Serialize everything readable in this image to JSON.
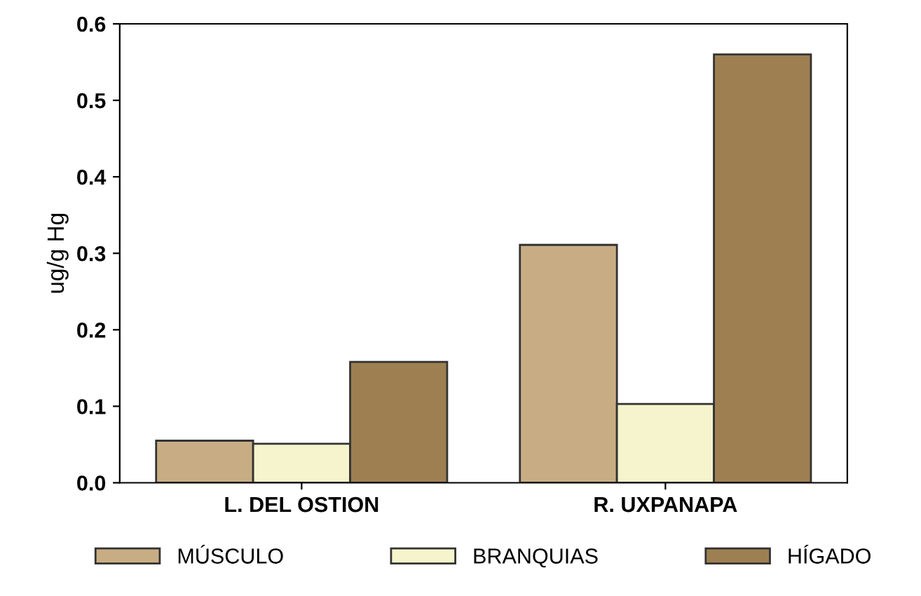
{
  "chart_data": {
    "type": "bar",
    "ylabel": "ug/g Hg",
    "categories": [
      "L. DEL OSTION",
      "R. UXPANAPA"
    ],
    "series": [
      {
        "name": "MÚSCULO",
        "color": "#c8ad84",
        "values": [
          0.055,
          0.311
        ]
      },
      {
        "name": "BRANQUIAS",
        "color": "#f5f4cc",
        "values": [
          0.051,
          0.103
        ]
      },
      {
        "name": "HÍGADO",
        "color": "#9d7f52",
        "values": [
          0.158,
          0.56
        ]
      }
    ],
    "ylim": [
      0,
      0.6
    ],
    "yticks": [
      {
        "value": 0,
        "label": "0.0"
      },
      0.1,
      0.2,
      0.3,
      0.4,
      0.5,
      0.6
    ],
    "grid": false,
    "legend": "bottom"
  }
}
